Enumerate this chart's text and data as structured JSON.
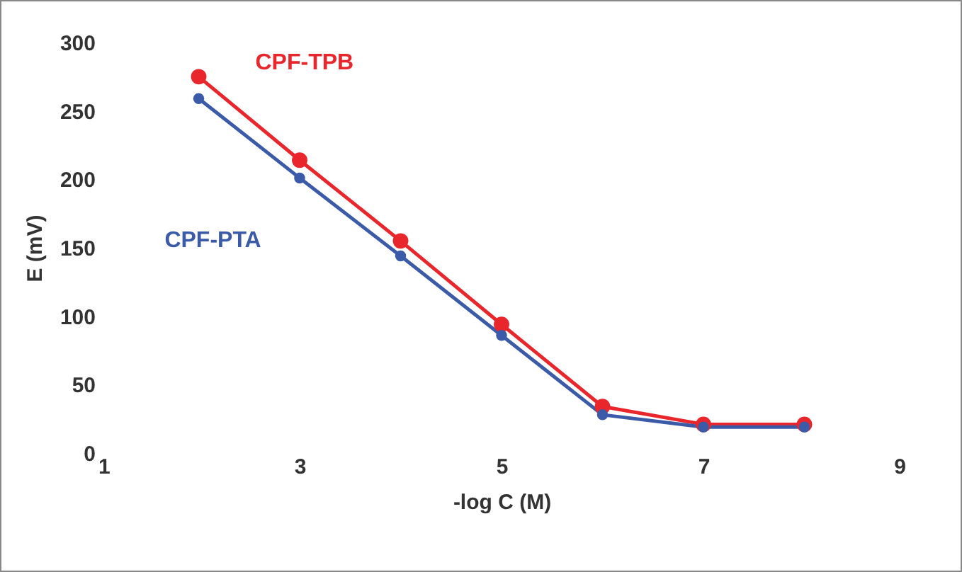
{
  "chart_data": {
    "type": "line",
    "xlabel": "-log C (M)",
    "ylabel": "E (mV)",
    "x": [
      2,
      3,
      4,
      5,
      6,
      7,
      8
    ],
    "series": [
      {
        "name": "CPF-TPB",
        "color": "#e8262b",
        "values": [
          275,
          214,
          155,
          94,
          34,
          21,
          21
        ]
      },
      {
        "name": "CPF-PTA",
        "color": "#3b5ba9",
        "values": [
          259,
          201,
          144,
          86,
          28,
          19,
          19
        ]
      }
    ],
    "xlim": [
      1,
      9
    ],
    "xticks": [
      1,
      3,
      5,
      7,
      9
    ],
    "ylim": [
      0,
      300
    ],
    "yticks": [
      0,
      50,
      100,
      150,
      200,
      250,
      300
    ],
    "grid": false,
    "legend": false,
    "marker": "circle",
    "line_style": "solid"
  }
}
